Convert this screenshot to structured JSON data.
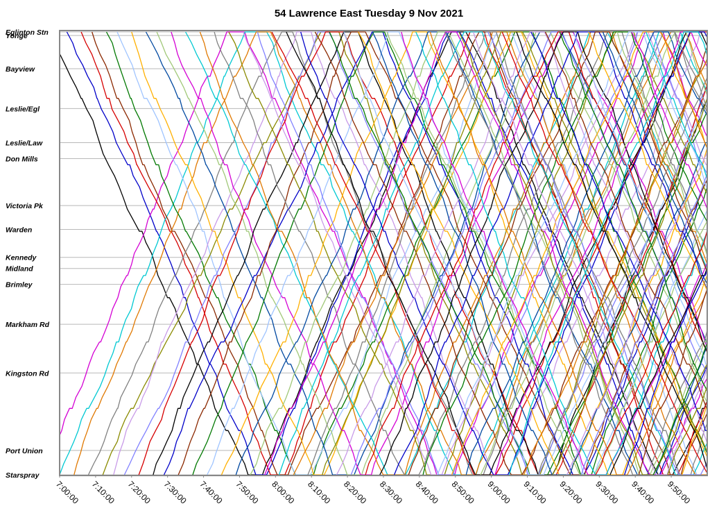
{
  "chart_data": {
    "type": "line",
    "title": "54 Lawrence East Tuesday 9 Nov 2021",
    "xlabel": "",
    "ylabel": "",
    "x_range": [
      "7:00:00",
      "10:00:00"
    ],
    "x_ticks": [
      "7:00:00",
      "7:10:00",
      "7:20:00",
      "7:30:00",
      "7:40:00",
      "7:50:00",
      "8:00:00",
      "8:10:00",
      "8:20:00",
      "8:30:00",
      "8:40:00",
      "8:50:00",
      "9:00:00",
      "9:10:00",
      "9:20:00",
      "9:30:00",
      "9:40:00",
      "9:50:00"
    ],
    "stops": [
      {
        "name": "Eglinton Stn",
        "pos": 0.0
      },
      {
        "name": "Yonge",
        "pos": 0.8
      },
      {
        "name": "Bayview",
        "pos": 8.3
      },
      {
        "name": "Leslie/Egl",
        "pos": 17.3
      },
      {
        "name": "Leslie/Law",
        "pos": 25.0
      },
      {
        "name": "Don Mills",
        "pos": 28.6
      },
      {
        "name": "Victoria Pk",
        "pos": 39.2
      },
      {
        "name": "Warden",
        "pos": 44.6
      },
      {
        "name": "Kennedy",
        "pos": 50.9
      },
      {
        "name": "Midland",
        "pos": 53.4
      },
      {
        "name": "Brimley",
        "pos": 57.0
      },
      {
        "name": "Markham Rd",
        "pos": 66.0
      },
      {
        "name": "Kingston Rd",
        "pos": 77.0
      },
      {
        "name": "Port Union",
        "pos": 94.5
      },
      {
        "name": "Starspray",
        "pos": 100.0
      }
    ],
    "grid": true,
    "legend": "none",
    "series_colors": [
      "#d60000",
      "#0000c8",
      "#e07800",
      "#000000",
      "#d400d4",
      "#00c8d2",
      "#808080",
      "#8b2800",
      "#007800",
      "#9fc4ff",
      "#8a8a00",
      "#ffb000",
      "#c89ae8",
      "#0048a0",
      "#8080ff",
      "#a0c878"
    ],
    "trips": [
      {
        "c": 3,
        "d": "out",
        "start": "6:58:00",
        "layover_min": 4
      },
      {
        "c": 1,
        "d": "out",
        "start": "7:02:00",
        "layover_min": 3
      },
      {
        "c": 4,
        "d": "in",
        "start": "6:56:00",
        "layover_min": 5
      },
      {
        "c": 0,
        "d": "out",
        "start": "7:06:00",
        "layover_min": 4
      },
      {
        "c": 5,
        "d": "in",
        "start": "7:00:00",
        "layover_min": 6
      },
      {
        "c": 7,
        "d": "out",
        "start": "7:09:00",
        "layover_min": 3
      },
      {
        "c": 2,
        "d": "in",
        "start": "7:04:00",
        "layover_min": 4
      },
      {
        "c": 8,
        "d": "out",
        "start": "7:13:00",
        "layover_min": 5
      },
      {
        "c": 6,
        "d": "in",
        "start": "7:08:00",
        "layover_min": 3
      },
      {
        "c": 9,
        "d": "out",
        "start": "7:16:00",
        "layover_min": 4
      },
      {
        "c": 10,
        "d": "in",
        "start": "7:12:00",
        "layover_min": 5
      },
      {
        "c": 11,
        "d": "out",
        "start": "7:20:00",
        "layover_min": 3
      },
      {
        "c": 12,
        "d": "in",
        "start": "7:15:00",
        "layover_min": 4
      },
      {
        "c": 13,
        "d": "out",
        "start": "7:24:00",
        "layover_min": 6
      },
      {
        "c": 14,
        "d": "in",
        "start": "7:18:00",
        "layover_min": 3
      },
      {
        "c": 15,
        "d": "out",
        "start": "7:27:00",
        "layover_min": 4
      },
      {
        "c": 0,
        "d": "in",
        "start": "7:22:00",
        "layover_min": 5
      },
      {
        "c": 4,
        "d": "out",
        "start": "7:31:00",
        "layover_min": 3
      },
      {
        "c": 3,
        "d": "in",
        "start": "7:26:00",
        "layover_min": 4
      },
      {
        "c": 5,
        "d": "out",
        "start": "7:35:00",
        "layover_min": 5
      },
      {
        "c": 1,
        "d": "in",
        "start": "7:29:00",
        "layover_min": 3
      },
      {
        "c": 7,
        "d": "in",
        "start": "7:33:00",
        "layover_min": 4
      },
      {
        "c": 2,
        "d": "out",
        "start": "7:39:00",
        "layover_min": 6
      },
      {
        "c": 8,
        "d": "in",
        "start": "7:37:00",
        "layover_min": 3
      },
      {
        "c": 6,
        "d": "out",
        "start": "7:43:00",
        "layover_min": 4
      },
      {
        "c": 10,
        "d": "out",
        "start": "7:47:00",
        "layover_min": 5
      },
      {
        "c": 9,
        "d": "in",
        "start": "7:41:00",
        "layover_min": 3
      },
      {
        "c": 11,
        "d": "in",
        "start": "7:45:00",
        "layover_min": 4
      },
      {
        "c": 12,
        "d": "out",
        "start": "7:51:00",
        "layover_min": 3
      },
      {
        "c": 13,
        "d": "in",
        "start": "7:49:00",
        "layover_min": 5
      },
      {
        "c": 14,
        "d": "out",
        "start": "7:55:00",
        "layover_min": 4
      },
      {
        "c": 15,
        "d": "in",
        "start": "7:53:00",
        "layover_min": 3
      },
      {
        "c": 0,
        "d": "out",
        "start": "7:59:00",
        "layover_min": 6
      },
      {
        "c": 3,
        "d": "out",
        "start": "8:03:00",
        "layover_min": 4
      },
      {
        "c": 4,
        "d": "in",
        "start": "7:57:00",
        "layover_min": 3
      },
      {
        "c": 5,
        "d": "in",
        "start": "8:01:00",
        "layover_min": 5
      },
      {
        "c": 1,
        "d": "out",
        "start": "8:07:00",
        "layover_min": 4
      },
      {
        "c": 7,
        "d": "out",
        "start": "8:11:00",
        "layover_min": 3
      },
      {
        "c": 2,
        "d": "in",
        "start": "8:05:00",
        "layover_min": 4
      },
      {
        "c": 8,
        "d": "out",
        "start": "8:15:00",
        "layover_min": 5
      },
      {
        "c": 6,
        "d": "in",
        "start": "8:09:00",
        "layover_min": 3
      },
      {
        "c": 9,
        "d": "out",
        "start": "8:19:00",
        "layover_min": 4
      },
      {
        "c": 10,
        "d": "in",
        "start": "8:13:00",
        "layover_min": 6
      },
      {
        "c": 11,
        "d": "out",
        "start": "8:23:00",
        "layover_min": 3
      },
      {
        "c": 12,
        "d": "in",
        "start": "8:17:00",
        "layover_min": 4
      },
      {
        "c": 13,
        "d": "out",
        "start": "8:27:00",
        "layover_min": 5
      },
      {
        "c": 14,
        "d": "in",
        "start": "8:21:00",
        "layover_min": 3
      },
      {
        "c": 15,
        "d": "out",
        "start": "8:31:00",
        "layover_min": 4
      },
      {
        "c": 0,
        "d": "in",
        "start": "8:25:00",
        "layover_min": 3
      },
      {
        "c": 4,
        "d": "out",
        "start": "8:35:00",
        "layover_min": 5
      },
      {
        "c": 3,
        "d": "in",
        "start": "8:29:00",
        "layover_min": 4
      },
      {
        "c": 5,
        "d": "out",
        "start": "8:39:00",
        "layover_min": 3
      },
      {
        "c": 1,
        "d": "in",
        "start": "8:33:00",
        "layover_min": 6
      },
      {
        "c": 7,
        "d": "in",
        "start": "8:37:00",
        "layover_min": 4
      },
      {
        "c": 2,
        "d": "out",
        "start": "8:43:00",
        "layover_min": 3
      },
      {
        "c": 8,
        "d": "in",
        "start": "8:41:00",
        "layover_min": 5
      },
      {
        "c": 6,
        "d": "out",
        "start": "8:47:00",
        "layover_min": 4
      },
      {
        "c": 10,
        "d": "out",
        "start": "8:51:00",
        "layover_min": 3
      },
      {
        "c": 9,
        "d": "in",
        "start": "8:45:00",
        "layover_min": 4
      },
      {
        "c": 11,
        "d": "in",
        "start": "8:49:00",
        "layover_min": 5
      },
      {
        "c": 12,
        "d": "out",
        "start": "8:55:00",
        "layover_min": 3
      },
      {
        "c": 13,
        "d": "in",
        "start": "8:53:00",
        "layover_min": 4
      },
      {
        "c": 14,
        "d": "out",
        "start": "8:59:00",
        "layover_min": 6
      },
      {
        "c": 15,
        "d": "in",
        "start": "8:57:00",
        "layover_min": 3
      },
      {
        "c": 0,
        "d": "out",
        "start": "9:03:00",
        "layover_min": 4
      },
      {
        "c": 3,
        "d": "out",
        "start": "9:07:00",
        "layover_min": 5
      },
      {
        "c": 4,
        "d": "in",
        "start": "9:01:00",
        "layover_min": 3
      },
      {
        "c": 5,
        "d": "in",
        "start": "9:05:00",
        "layover_min": 4
      },
      {
        "c": 1,
        "d": "out",
        "start": "9:11:00",
        "layover_min": 3
      },
      {
        "c": 7,
        "d": "out",
        "start": "9:15:00",
        "layover_min": 5
      },
      {
        "c": 2,
        "d": "in",
        "start": "9:09:00",
        "layover_min": 4
      },
      {
        "c": 8,
        "d": "out",
        "start": "9:19:00",
        "layover_min": 3
      },
      {
        "c": 6,
        "d": "in",
        "start": "9:13:00",
        "layover_min": 6
      },
      {
        "c": 9,
        "d": "out",
        "start": "9:23:00",
        "layover_min": 4
      },
      {
        "c": 10,
        "d": "in",
        "start": "9:17:00",
        "layover_min": 3
      },
      {
        "c": 11,
        "d": "out",
        "start": "9:27:00",
        "layover_min": 4
      },
      {
        "c": 12,
        "d": "in",
        "start": "9:21:00",
        "layover_min": 5
      },
      {
        "c": 13,
        "d": "out",
        "start": "9:31:00",
        "layover_min": 3
      },
      {
        "c": 14,
        "d": "in",
        "start": "9:25:00",
        "layover_min": 4
      },
      {
        "c": 15,
        "d": "out",
        "start": "9:35:00",
        "layover_min": 3
      },
      {
        "c": 0,
        "d": "in",
        "start": "9:29:00",
        "layover_min": 5
      },
      {
        "c": 4,
        "d": "out",
        "start": "9:39:00",
        "layover_min": 4
      },
      {
        "c": 3,
        "d": "in",
        "start": "9:33:00",
        "layover_min": 3
      },
      {
        "c": 5,
        "d": "out",
        "start": "9:43:00",
        "layover_min": 6
      },
      {
        "c": 1,
        "d": "in",
        "start": "9:37:00",
        "layover_min": 4
      },
      {
        "c": 7,
        "d": "in",
        "start": "9:41:00",
        "layover_min": 3
      },
      {
        "c": 2,
        "d": "out",
        "start": "9:47:00",
        "layover_min": 4
      },
      {
        "c": 8,
        "d": "in",
        "start": "9:45:00",
        "layover_min": 5
      },
      {
        "c": 6,
        "d": "out",
        "start": "9:51:00",
        "layover_min": 3
      },
      {
        "c": 10,
        "d": "in",
        "start": "9:49:00",
        "layover_min": 4
      },
      {
        "c": 11,
        "d": "in",
        "start": "9:53:00",
        "layover_min": 3
      }
    ]
  }
}
